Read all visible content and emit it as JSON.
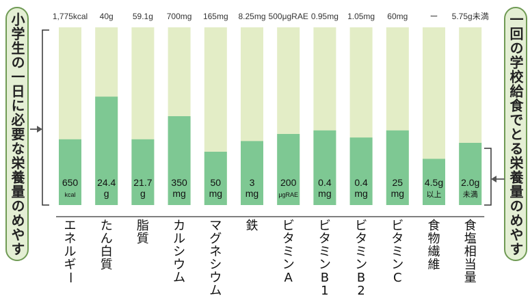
{
  "left_label": "小学生の一日に必要な栄養量のめやす",
  "right_label": "一回の学校給食でとる栄養量のめやす",
  "colors": {
    "bar_bg": "#e3edc6",
    "bar_fill": "#7ec893",
    "side_bg": "#e4efd4",
    "side_border": "#6f9a54",
    "axis": "#333333"
  },
  "chart_data": {
    "type": "bar",
    "categories": [
      "エネルギー",
      "たん白質",
      "脂質",
      "カルシウム",
      "マグネシウム",
      "鉄",
      "ビタミンA",
      "ビタミンB1",
      "ビタミンB2",
      "ビタミンC",
      "食物繊維",
      "食塩相当量"
    ],
    "daily_requirement_labels": [
      "1,775kcal",
      "40g",
      "59.1g",
      "700mg",
      "165mg",
      "8.25mg",
      "500μgRAE",
      "0.95mg",
      "1.05mg",
      "60mg",
      "ー",
      "5.75g未満"
    ],
    "school_lunch_labels": [
      [
        "650",
        "kcal"
      ],
      [
        "24.4",
        "g"
      ],
      [
        "21.7",
        "g"
      ],
      [
        "350",
        "mg"
      ],
      [
        "50",
        "mg"
      ],
      [
        "3",
        "mg"
      ],
      [
        "200",
        "μgRAE"
      ],
      [
        "0.4",
        "mg"
      ],
      [
        "0.4",
        "mg"
      ],
      [
        "25",
        "mg"
      ],
      [
        "4.5g",
        "以上"
      ],
      [
        "2.0g",
        "未満"
      ]
    ],
    "fill_fraction": [
      0.37,
      0.61,
      0.37,
      0.5,
      0.3,
      0.36,
      0.4,
      0.42,
      0.38,
      0.42,
      0.26,
      0.35
    ],
    "ylim": [
      0,
      1
    ]
  }
}
